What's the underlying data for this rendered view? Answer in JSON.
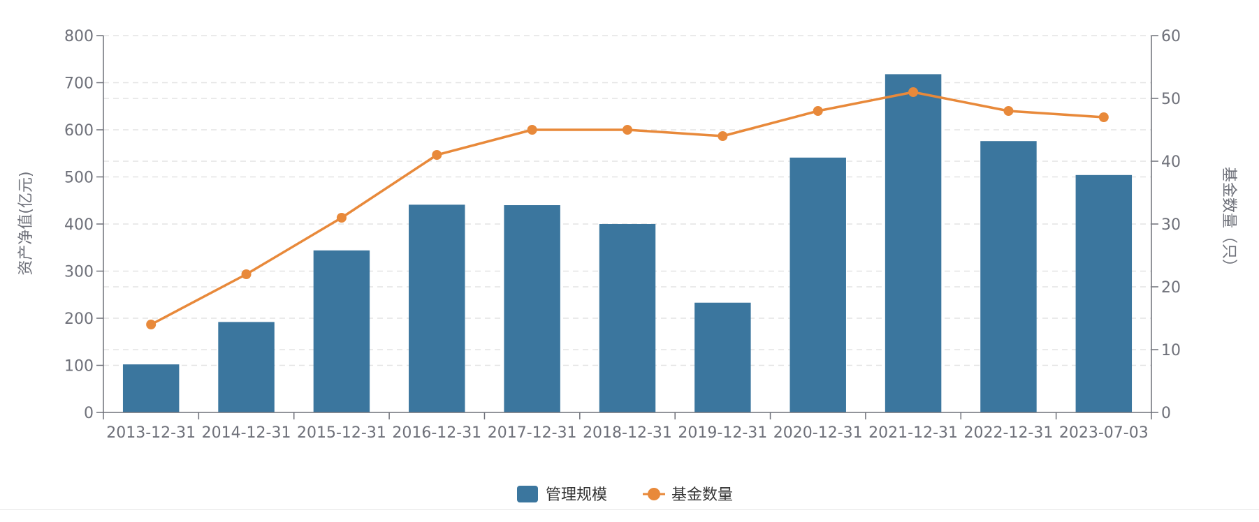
{
  "chart_data": {
    "type": "bar",
    "title": "",
    "categories": [
      "2013-12-31",
      "2014-12-31",
      "2015-12-31",
      "2016-12-31",
      "2017-12-31",
      "2018-12-31",
      "2019-12-31",
      "2020-12-31",
      "2021-12-31",
      "2022-12-31",
      "2023-07-03"
    ],
    "series": [
      {
        "name": "管理规模",
        "type": "bar",
        "axis": "left",
        "color": "#3b769e",
        "values": [
          102,
          192,
          344,
          441,
          440,
          400,
          233,
          541,
          718,
          576,
          504
        ]
      },
      {
        "name": "基金数量",
        "type": "line",
        "axis": "right",
        "color": "#e8893a",
        "values": [
          14,
          22,
          31,
          41,
          45,
          45,
          44,
          48,
          51,
          48,
          47
        ]
      }
    ],
    "y_left": {
      "label": "资产净值(亿元)",
      "min": 0,
      "max": 800,
      "ticks": [
        0,
        100,
        200,
        300,
        400,
        500,
        600,
        700,
        800
      ]
    },
    "y_right": {
      "label": "基金数量（只）",
      "min": 0,
      "max": 60,
      "ticks": [
        0,
        10,
        20,
        30,
        40,
        50,
        60
      ]
    },
    "grid": true,
    "legend_position": "bottom-center"
  },
  "legend": [
    {
      "label": "管理规模",
      "color": "#3b769e",
      "icon": "bar-swatch"
    },
    {
      "label": "基金数量",
      "color": "#e8893a",
      "icon": "line-dot"
    }
  ]
}
